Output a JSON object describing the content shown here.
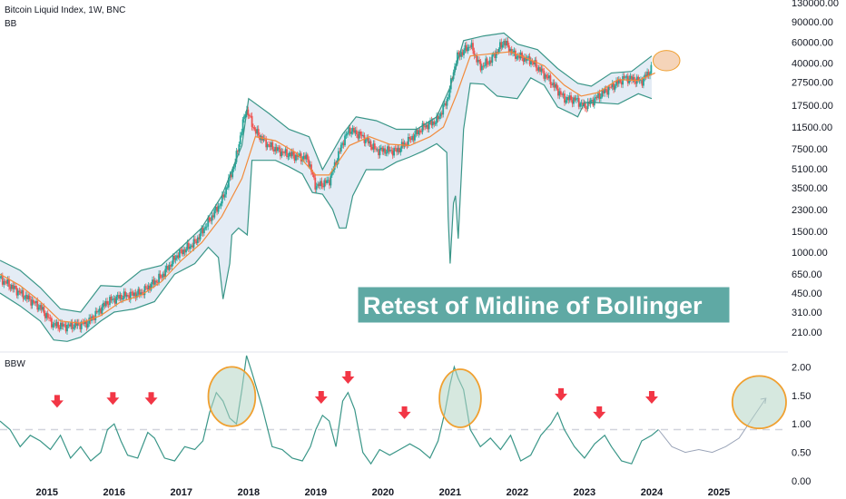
{
  "header": {
    "title": "Bitcoin Liquid Index, 1W, BNC",
    "indicator": "BB",
    "lower_indicator": "BBW"
  },
  "annotation": {
    "text": "Retest of Midline of Bollinger"
  },
  "colors": {
    "upper_band": "#3a9688",
    "mid_band": "#f28b3c",
    "band_fill": "#dbe6f2",
    "candle_up": "#26a69a",
    "candle_down": "#ef5350",
    "bbw_line": "#3a9688",
    "threshold": "#d1d4dc",
    "arrow": "#f23645",
    "circle_stroke": "#f0a030",
    "circle_fill": "#b5d5c5",
    "projection": "#9aa4b8"
  },
  "chart_data": [
    {
      "type": "line",
      "scale": "log",
      "ylim": [
        150,
        130000
      ],
      "xlim": [
        2014.3,
        2026.0
      ],
      "y_ticks": [
        "130000.00",
        "90000.00",
        "60000.00",
        "40000.00",
        "27500.00",
        "17500.00",
        "11500.00",
        "7500.00",
        "5100.00",
        "3500.00",
        "2300.00",
        "1500.00",
        "1000.00",
        "650.00",
        "450.00",
        "310.00",
        "210.00"
      ],
      "series": [
        {
          "key": "price",
          "x": [
            2014.3,
            2014.6,
            2014.9,
            2015.1,
            2015.3,
            2015.6,
            2015.9,
            2016.1,
            2016.4,
            2016.7,
            2016.95,
            2017.2,
            2017.4,
            2017.6,
            2017.8,
            2017.96,
            2018.1,
            2018.3,
            2018.5,
            2018.7,
            2018.88,
            2019.0,
            2019.2,
            2019.4,
            2019.5,
            2019.7,
            2019.9,
            2020.2,
            2020.4,
            2020.6,
            2020.8,
            2020.95,
            2021.1,
            2021.3,
            2021.45,
            2021.6,
            2021.8,
            2021.95,
            2022.2,
            2022.45,
            2022.7,
            2022.88,
            2023.0,
            2023.3,
            2023.6,
            2023.85,
            2024.0
          ],
          "y": [
            600,
            450,
            340,
            240,
            235,
            250,
            380,
            420,
            450,
            620,
            960,
            1200,
            1800,
            2700,
            5800,
            16500,
            10500,
            8000,
            7000,
            6500,
            6200,
            3600,
            4000,
            8500,
            11000,
            9500,
            7300,
            7200,
            9000,
            11500,
            13000,
            19000,
            45000,
            57000,
            37000,
            42000,
            61000,
            47000,
            42000,
            30000,
            20000,
            19500,
            17000,
            23000,
            30000,
            28000,
            36000
          ]
        },
        {
          "key": "upper_band",
          "x": [
            2014.3,
            2014.6,
            2014.9,
            2015.2,
            2015.5,
            2015.8,
            2016.1,
            2016.4,
            2016.7,
            2017.0,
            2017.3,
            2017.6,
            2017.9,
            2018.0,
            2018.3,
            2018.6,
            2018.9,
            2019.1,
            2019.4,
            2019.6,
            2019.9,
            2020.2,
            2020.5,
            2020.8,
            2021.0,
            2021.2,
            2021.5,
            2021.8,
            2022.0,
            2022.3,
            2022.6,
            2022.9,
            2023.1,
            2023.4,
            2023.7,
            2024.0
          ],
          "y": [
            850,
            700,
            500,
            330,
            310,
            520,
            510,
            700,
            770,
            1100,
            1600,
            3000,
            8000,
            20000,
            15000,
            11000,
            9500,
            5000,
            10000,
            14000,
            13000,
            11000,
            11000,
            14000,
            25000,
            62000,
            68000,
            72000,
            58000,
            52000,
            36000,
            27000,
            25500,
            33000,
            34000,
            46000
          ]
        },
        {
          "key": "mid_band",
          "x": [
            2014.3,
            2014.6,
            2014.9,
            2015.2,
            2015.5,
            2015.8,
            2016.1,
            2016.4,
            2016.7,
            2017.0,
            2017.3,
            2017.6,
            2017.9,
            2018.1,
            2018.4,
            2018.7,
            2019.0,
            2019.2,
            2019.5,
            2019.8,
            2020.1,
            2020.4,
            2020.7,
            2020.9,
            2021.1,
            2021.3,
            2021.6,
            2021.9,
            2022.1,
            2022.4,
            2022.7,
            2022.95,
            2023.2,
            2023.5,
            2023.8,
            2024.05
          ],
          "y": [
            650,
            520,
            380,
            260,
            250,
            290,
            380,
            430,
            560,
            850,
            1200,
            2000,
            4200,
            9500,
            8800,
            7000,
            4500,
            4500,
            8000,
            9500,
            8200,
            8000,
            9500,
            11500,
            22000,
            46000,
            48000,
            50000,
            45000,
            38000,
            26000,
            21000,
            22500,
            29000,
            28500,
            33000
          ]
        },
        {
          "key": "lower_band",
          "x": [
            2014.3,
            2014.6,
            2014.9,
            2015.1,
            2015.3,
            2015.5,
            2015.8,
            2016.0,
            2016.3,
            2016.6,
            2016.9,
            2017.2,
            2017.4,
            2017.55,
            2017.62,
            2017.72,
            2017.75,
            2017.85,
            2017.98,
            2018.05,
            2018.2,
            2018.4,
            2018.6,
            2018.8,
            2018.95,
            2019.1,
            2019.25,
            2019.35,
            2019.45,
            2019.55,
            2019.75,
            2020.0,
            2020.2,
            2020.4,
            2020.6,
            2020.8,
            2020.95,
            2020.97,
            2021.0,
            2021.05,
            2021.08,
            2021.12,
            2021.2,
            2021.3,
            2021.5,
            2021.7,
            2022.0,
            2022.2,
            2022.4,
            2022.6,
            2022.8,
            2022.9,
            2023.0,
            2023.2,
            2023.5,
            2023.8,
            2024.0
          ],
          "y": [
            450,
            350,
            260,
            180,
            175,
            190,
            260,
            310,
            330,
            380,
            650,
            800,
            1100,
            900,
            400,
            800,
            1400,
            1600,
            1400,
            6000,
            6000,
            6000,
            5300,
            4600,
            3200,
            3100,
            2300,
            1600,
            1600,
            3000,
            5000,
            5000,
            5800,
            6400,
            7200,
            8300,
            7000,
            2000,
            800,
            2600,
            3000,
            1300,
            11000,
            27000,
            26500,
            21000,
            20000,
            30000,
            26000,
            17000,
            15000,
            14000,
            18500,
            18500,
            18000,
            22000,
            20000
          ]
        }
      ]
    },
    {
      "type": "line",
      "key": "BBW",
      "ylim": [
        0,
        2.15
      ],
      "y_ticks": [
        "2.00",
        "1.50",
        "1.00",
        "0.50",
        "0.00"
      ],
      "threshold": 0.9,
      "x_ticks": [
        "2015",
        "2016",
        "2017",
        "2018",
        "2019",
        "2020",
        "2021",
        "2022",
        "2023",
        "2024",
        "2025"
      ],
      "x_tick_values": [
        2015,
        2016,
        2017,
        2018,
        2019,
        2020,
        2021,
        2022,
        2023,
        2024,
        2025
      ],
      "x": [
        2014.3,
        2014.45,
        2014.6,
        2014.75,
        2014.9,
        2015.05,
        2015.2,
        2015.35,
        2015.5,
        2015.65,
        2015.8,
        2015.9,
        2016.0,
        2016.1,
        2016.2,
        2016.35,
        2016.5,
        2016.6,
        2016.75,
        2016.9,
        2017.05,
        2017.2,
        2017.32,
        2017.42,
        2017.52,
        2017.62,
        2017.72,
        2017.82,
        2017.9,
        2017.97,
        2018.05,
        2018.2,
        2018.35,
        2018.5,
        2018.65,
        2018.8,
        2018.92,
        2019.0,
        2019.1,
        2019.2,
        2019.3,
        2019.4,
        2019.48,
        2019.58,
        2019.7,
        2019.82,
        2019.95,
        2020.1,
        2020.25,
        2020.4,
        2020.55,
        2020.7,
        2020.82,
        2020.92,
        2021.0,
        2021.06,
        2021.12,
        2021.2,
        2021.3,
        2021.45,
        2021.6,
        2021.75,
        2021.9,
        2022.05,
        2022.2,
        2022.35,
        2022.5,
        2022.6,
        2022.7,
        2022.85,
        2023.0,
        2023.15,
        2023.3,
        2023.4,
        2023.55,
        2023.7,
        2023.85,
        2024.0,
        2024.1
      ],
      "y": [
        1.05,
        0.9,
        0.6,
        0.8,
        0.7,
        0.55,
        0.8,
        0.4,
        0.6,
        0.35,
        0.5,
        0.9,
        1.0,
        0.7,
        0.45,
        0.4,
        0.85,
        0.75,
        0.4,
        0.35,
        0.6,
        0.55,
        0.7,
        1.2,
        1.55,
        1.4,
        1.1,
        1.0,
        1.6,
        2.2,
        1.9,
        1.3,
        0.6,
        0.55,
        0.4,
        0.35,
        0.6,
        0.9,
        1.15,
        1.05,
        0.6,
        1.4,
        1.55,
        1.25,
        0.5,
        0.3,
        0.55,
        0.45,
        0.55,
        0.65,
        0.55,
        0.4,
        0.7,
        1.2,
        1.7,
        2.0,
        1.8,
        1.6,
        0.9,
        0.6,
        0.75,
        0.55,
        0.8,
        0.35,
        0.45,
        0.8,
        1.0,
        1.2,
        0.9,
        0.6,
        0.4,
        0.65,
        0.8,
        0.6,
        0.35,
        0.3,
        0.7,
        0.8,
        0.9
      ]
    }
  ],
  "projection": {
    "x": [
      2024.1,
      2024.3,
      2024.5,
      2024.7,
      2024.9,
      2025.1,
      2025.3,
      2025.5,
      2025.7
    ],
    "y": [
      0.9,
      0.6,
      0.5,
      0.55,
      0.5,
      0.6,
      0.75,
      1.1,
      1.45
    ]
  },
  "down_arrows": [
    {
      "x": 2015.15,
      "y": 1.38
    },
    {
      "x": 2015.98,
      "y": 1.43
    },
    {
      "x": 2016.55,
      "y": 1.43
    },
    {
      "x": 2019.08,
      "y": 1.45
    },
    {
      "x": 2019.48,
      "y": 1.8
    },
    {
      "x": 2020.32,
      "y": 1.18
    },
    {
      "x": 2022.65,
      "y": 1.5
    },
    {
      "x": 2023.22,
      "y": 1.18
    },
    {
      "x": 2024.0,
      "y": 1.45
    }
  ],
  "highlight_circles": [
    {
      "panel": "bbw",
      "x": 2017.75,
      "y": 1.48,
      "rx_years": 0.35,
      "ry_value": 0.52
    },
    {
      "panel": "bbw",
      "x": 2021.15,
      "y": 1.45,
      "rx_years": 0.31,
      "ry_value": 0.51
    },
    {
      "panel": "bbw",
      "x": 2025.6,
      "y": 1.38,
      "rx_years": 0.4,
      "ry_value": 0.46
    },
    {
      "panel": "price",
      "x": 2024.22,
      "y": 42000,
      "rx_years": 0.2,
      "ry_ratio": 1.22
    }
  ]
}
